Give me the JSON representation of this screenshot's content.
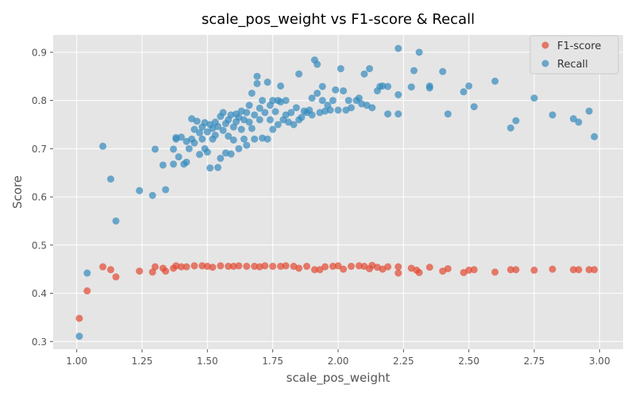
{
  "chart_data": {
    "type": "scatter",
    "title": "scale_pos_weight vs F1-score & Recall",
    "xlabel": "scale_pos_weight",
    "ylabel": "Score",
    "xlim": [
      0.91,
      3.09
    ],
    "ylim": [
      0.284,
      0.936
    ],
    "x_ticks": [
      "1.00",
      "1.25",
      "1.50",
      "1.75",
      "2.00",
      "2.25",
      "2.50",
      "2.75",
      "3.00"
    ],
    "y_ticks": [
      "0.3",
      "0.4",
      "0.5",
      "0.6",
      "0.7",
      "0.8",
      "0.9"
    ],
    "grid": true,
    "legend_position": "upper right",
    "series": [
      {
        "name": "F1-score",
        "color": "#E24A33",
        "points": [
          [
            1.01,
            0.348
          ],
          [
            1.04,
            0.405
          ],
          [
            1.1,
            0.455
          ],
          [
            1.13,
            0.449
          ],
          [
            1.15,
            0.434
          ],
          [
            1.24,
            0.446
          ],
          [
            1.29,
            0.444
          ],
          [
            1.3,
            0.455
          ],
          [
            1.33,
            0.452
          ],
          [
            1.34,
            0.446
          ],
          [
            1.37,
            0.452
          ],
          [
            1.38,
            0.457
          ],
          [
            1.4,
            0.455
          ],
          [
            1.42,
            0.455
          ],
          [
            1.45,
            0.457
          ],
          [
            1.48,
            0.457
          ],
          [
            1.5,
            0.456
          ],
          [
            1.52,
            0.454
          ],
          [
            1.55,
            0.457
          ],
          [
            1.58,
            0.456
          ],
          [
            1.6,
            0.456
          ],
          [
            1.62,
            0.457
          ],
          [
            1.65,
            0.456
          ],
          [
            1.68,
            0.456
          ],
          [
            1.7,
            0.455
          ],
          [
            1.72,
            0.457
          ],
          [
            1.75,
            0.456
          ],
          [
            1.78,
            0.456
          ],
          [
            1.8,
            0.457
          ],
          [
            1.83,
            0.456
          ],
          [
            1.85,
            0.452
          ],
          [
            1.88,
            0.456
          ],
          [
            1.91,
            0.449
          ],
          [
            1.93,
            0.449
          ],
          [
            1.95,
            0.455
          ],
          [
            1.98,
            0.456
          ],
          [
            2.0,
            0.457
          ],
          [
            2.02,
            0.45
          ],
          [
            2.05,
            0.456
          ],
          [
            2.08,
            0.457
          ],
          [
            2.1,
            0.456
          ],
          [
            2.12,
            0.451
          ],
          [
            2.13,
            0.458
          ],
          [
            2.15,
            0.454
          ],
          [
            2.17,
            0.45
          ],
          [
            2.19,
            0.455
          ],
          [
            2.23,
            0.442
          ],
          [
            2.23,
            0.455
          ],
          [
            2.28,
            0.452
          ],
          [
            2.3,
            0.448
          ],
          [
            2.31,
            0.443
          ],
          [
            2.35,
            0.454
          ],
          [
            2.4,
            0.446
          ],
          [
            2.42,
            0.451
          ],
          [
            2.48,
            0.443
          ],
          [
            2.5,
            0.448
          ],
          [
            2.52,
            0.449
          ],
          [
            2.6,
            0.444
          ],
          [
            2.66,
            0.449
          ],
          [
            2.68,
            0.449
          ],
          [
            2.75,
            0.448
          ],
          [
            2.82,
            0.45
          ],
          [
            2.9,
            0.449
          ],
          [
            2.92,
            0.449
          ],
          [
            2.96,
            0.449
          ],
          [
            2.98,
            0.449
          ]
        ]
      },
      {
        "name": "Recall",
        "color": "#348ABD",
        "points": [
          [
            1.01,
            0.311
          ],
          [
            1.04,
            0.442
          ],
          [
            1.1,
            0.705
          ],
          [
            1.13,
            0.637
          ],
          [
            1.15,
            0.55
          ],
          [
            1.24,
            0.613
          ],
          [
            1.29,
            0.603
          ],
          [
            1.3,
            0.699
          ],
          [
            1.33,
            0.666
          ],
          [
            1.34,
            0.615
          ],
          [
            1.37,
            0.668
          ],
          [
            1.37,
            0.699
          ],
          [
            1.38,
            0.72
          ],
          [
            1.38,
            0.723
          ],
          [
            1.39,
            0.683
          ],
          [
            1.4,
            0.724
          ],
          [
            1.41,
            0.668
          ],
          [
            1.42,
            0.672
          ],
          [
            1.42,
            0.715
          ],
          [
            1.43,
            0.7
          ],
          [
            1.44,
            0.72
          ],
          [
            1.44,
            0.762
          ],
          [
            1.45,
            0.712
          ],
          [
            1.45,
            0.74
          ],
          [
            1.46,
            0.757
          ],
          [
            1.47,
            0.733
          ],
          [
            1.47,
            0.688
          ],
          [
            1.48,
            0.72
          ],
          [
            1.48,
            0.745
          ],
          [
            1.49,
            0.754
          ],
          [
            1.49,
            0.7
          ],
          [
            1.5,
            0.693
          ],
          [
            1.5,
            0.735
          ],
          [
            1.51,
            0.66
          ],
          [
            1.51,
            0.75
          ],
          [
            1.52,
            0.742
          ],
          [
            1.52,
            0.72
          ],
          [
            1.53,
            0.755
          ],
          [
            1.53,
            0.728
          ],
          [
            1.54,
            0.661
          ],
          [
            1.54,
            0.746
          ],
          [
            1.55,
            0.68
          ],
          [
            1.55,
            0.767
          ],
          [
            1.56,
            0.738
          ],
          [
            1.56,
            0.775
          ],
          [
            1.57,
            0.691
          ],
          [
            1.57,
            0.752
          ],
          [
            1.58,
            0.76
          ],
          [
            1.58,
            0.726
          ],
          [
            1.59,
            0.689
          ],
          [
            1.59,
            0.77
          ],
          [
            1.6,
            0.745
          ],
          [
            1.6,
            0.718
          ],
          [
            1.61,
            0.756
          ],
          [
            1.61,
            0.772
          ],
          [
            1.62,
            0.7
          ],
          [
            1.62,
            0.765
          ],
          [
            1.63,
            0.74
          ],
          [
            1.63,
            0.778
          ],
          [
            1.64,
            0.76
          ],
          [
            1.64,
            0.72
          ],
          [
            1.65,
            0.707
          ],
          [
            1.65,
            0.775
          ],
          [
            1.66,
            0.755
          ],
          [
            1.66,
            0.79
          ],
          [
            1.67,
            0.815
          ],
          [
            1.67,
            0.742
          ],
          [
            1.68,
            0.72
          ],
          [
            1.68,
            0.77
          ],
          [
            1.69,
            0.835
          ],
          [
            1.69,
            0.85
          ],
          [
            1.7,
            0.784
          ],
          [
            1.7,
            0.76
          ],
          [
            1.71,
            0.722
          ],
          [
            1.71,
            0.8
          ],
          [
            1.72,
            0.775
          ],
          [
            1.73,
            0.72
          ],
          [
            1.73,
            0.838
          ],
          [
            1.74,
            0.76
          ],
          [
            1.74,
            0.79
          ],
          [
            1.75,
            0.8
          ],
          [
            1.75,
            0.74
          ],
          [
            1.76,
            0.777
          ],
          [
            1.77,
            0.8
          ],
          [
            1.77,
            0.75
          ],
          [
            1.78,
            0.83
          ],
          [
            1.78,
            0.797
          ],
          [
            1.79,
            0.76
          ],
          [
            1.8,
            0.8
          ],
          [
            1.8,
            0.77
          ],
          [
            1.81,
            0.755
          ],
          [
            1.82,
            0.775
          ],
          [
            1.83,
            0.75
          ],
          [
            1.84,
            0.785
          ],
          [
            1.85,
            0.855
          ],
          [
            1.85,
            0.76
          ],
          [
            1.86,
            0.765
          ],
          [
            1.87,
            0.778
          ],
          [
            1.88,
            0.775
          ],
          [
            1.89,
            0.78
          ],
          [
            1.9,
            0.805
          ],
          [
            1.9,
            0.77
          ],
          [
            1.91,
            0.884
          ],
          [
            1.92,
            0.875
          ],
          [
            1.92,
            0.815
          ],
          [
            1.93,
            0.775
          ],
          [
            1.94,
            0.829
          ],
          [
            1.94,
            0.8
          ],
          [
            1.95,
            0.778
          ],
          [
            1.96,
            0.79
          ],
          [
            1.97,
            0.78
          ],
          [
            1.98,
            0.8
          ],
          [
            1.99,
            0.822
          ],
          [
            2.0,
            0.78
          ],
          [
            2.01,
            0.866
          ],
          [
            2.02,
            0.82
          ],
          [
            2.03,
            0.78
          ],
          [
            2.04,
            0.8
          ],
          [
            2.05,
            0.785
          ],
          [
            2.07,
            0.8
          ],
          [
            2.08,
            0.805
          ],
          [
            2.09,
            0.793
          ],
          [
            2.1,
            0.855
          ],
          [
            2.11,
            0.79
          ],
          [
            2.12,
            0.866
          ],
          [
            2.13,
            0.785
          ],
          [
            2.15,
            0.82
          ],
          [
            2.16,
            0.829
          ],
          [
            2.17,
            0.83
          ],
          [
            2.19,
            0.829
          ],
          [
            2.19,
            0.772
          ],
          [
            2.23,
            0.772
          ],
          [
            2.23,
            0.908
          ],
          [
            2.23,
            0.812
          ],
          [
            2.28,
            0.828
          ],
          [
            2.29,
            0.862
          ],
          [
            2.31,
            0.9
          ],
          [
            2.35,
            0.83
          ],
          [
            2.35,
            0.826
          ],
          [
            2.4,
            0.86
          ],
          [
            2.42,
            0.772
          ],
          [
            2.48,
            0.818
          ],
          [
            2.5,
            0.83
          ],
          [
            2.52,
            0.787
          ],
          [
            2.6,
            0.84
          ],
          [
            2.66,
            0.743
          ],
          [
            2.68,
            0.758
          ],
          [
            2.75,
            0.805
          ],
          [
            2.82,
            0.77
          ],
          [
            2.9,
            0.762
          ],
          [
            2.92,
            0.755
          ],
          [
            2.96,
            0.778
          ],
          [
            2.98,
            0.725
          ]
        ]
      }
    ]
  }
}
